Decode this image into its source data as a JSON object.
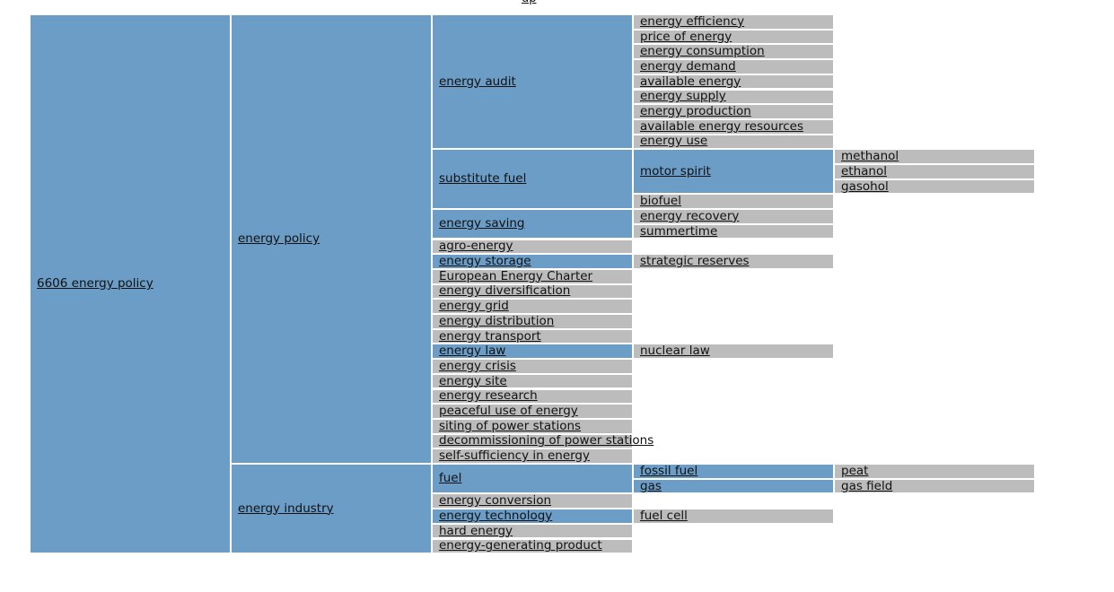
{
  "top_link": "up",
  "root": {
    "label": "6606 energy policy",
    "children": [
      {
        "label": "energy policy",
        "children": [
          {
            "label": "energy audit",
            "children": [
              {
                "label": "energy efficiency"
              },
              {
                "label": "price of energy"
              },
              {
                "label": "energy consumption"
              },
              {
                "label": "energy demand"
              },
              {
                "label": "available energy"
              },
              {
                "label": "energy supply"
              },
              {
                "label": "energy production"
              },
              {
                "label": "available energy resources"
              },
              {
                "label": "energy use"
              }
            ]
          },
          {
            "label": "substitute fuel",
            "children": [
              {
                "label": "motor spirit",
                "children": [
                  {
                    "label": "methanol"
                  },
                  {
                    "label": "ethanol"
                  },
                  {
                    "label": "gasohol"
                  }
                ]
              },
              {
                "label": "biofuel"
              }
            ]
          },
          {
            "label": "energy saving",
            "children": [
              {
                "label": "energy recovery"
              },
              {
                "label": "summertime"
              }
            ]
          },
          {
            "label": "agro-energy"
          },
          {
            "label": "energy storage",
            "children": [
              {
                "label": "strategic reserves"
              }
            ]
          },
          {
            "label": "European Energy Charter"
          },
          {
            "label": "energy diversification"
          },
          {
            "label": "energy grid"
          },
          {
            "label": "energy distribution"
          },
          {
            "label": "energy transport"
          },
          {
            "label": "energy law",
            "children": [
              {
                "label": "nuclear law"
              }
            ]
          },
          {
            "label": "energy crisis"
          },
          {
            "label": "energy site"
          },
          {
            "label": "energy research"
          },
          {
            "label": "peaceful use of energy"
          },
          {
            "label": "siting of power stations"
          },
          {
            "label": "decommissioning of power stations"
          },
          {
            "label": "self-sufficiency in energy"
          }
        ]
      },
      {
        "label": "energy industry",
        "children": [
          {
            "label": "fuel",
            "children": [
              {
                "label": "fossil fuel",
                "children": [
                  {
                    "label": "peat"
                  }
                ]
              },
              {
                "label": "gas",
                "children": [
                  {
                    "label": "gas field"
                  }
                ]
              }
            ]
          },
          {
            "label": "energy conversion"
          },
          {
            "label": "energy technology",
            "children": [
              {
                "label": "fuel cell"
              }
            ]
          },
          {
            "label": "hard energy"
          },
          {
            "label": "energy-generating product"
          }
        ]
      }
    ]
  }
}
